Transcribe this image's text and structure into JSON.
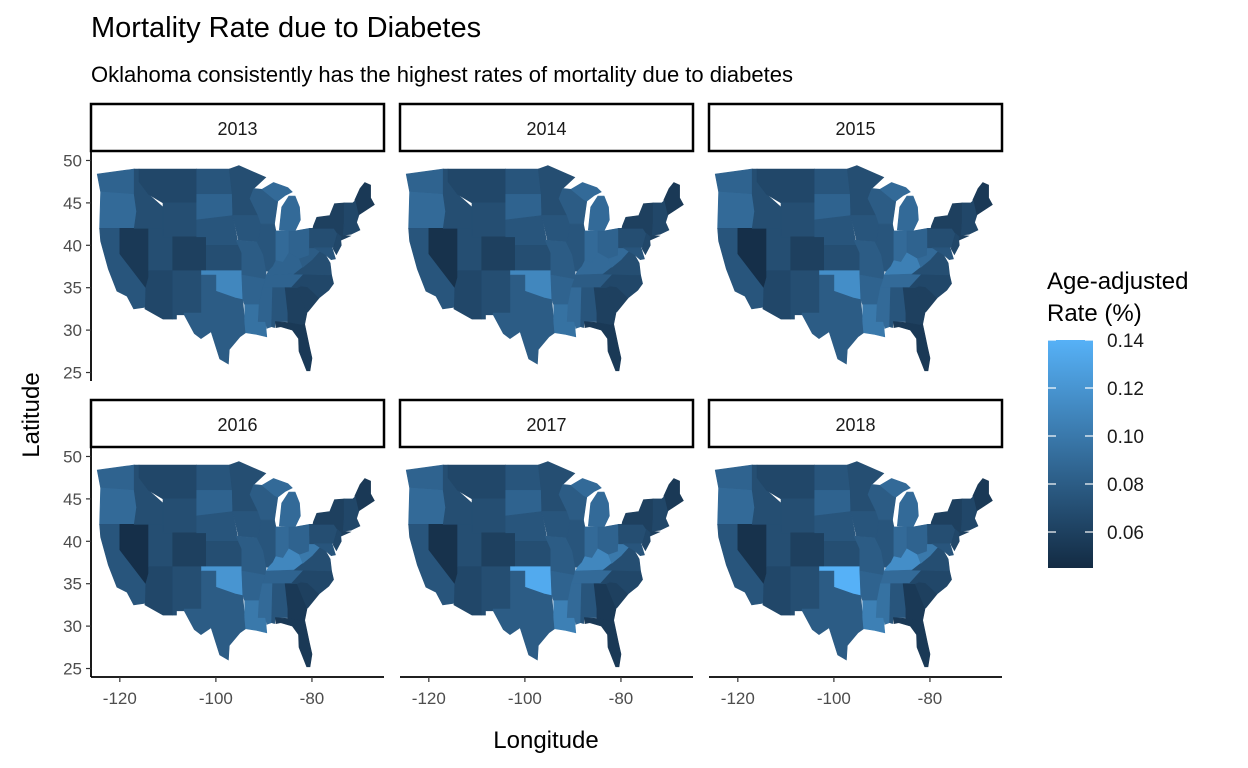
{
  "chart_data": {
    "type": "choropleth-map",
    "title": "Mortality Rate due to Diabetes",
    "subtitle": "Oklahoma consistently has the highest rates of mortality due to diabetes",
    "xlabel": "Longitude",
    "ylabel": "Latitude",
    "x_ticks": [
      -120,
      -100,
      -80
    ],
    "y_ticks": [
      25,
      30,
      35,
      40,
      45,
      50
    ],
    "xlim": [
      -126,
      -65
    ],
    "ylim": [
      24,
      51
    ],
    "legend": {
      "title_lines": [
        "Age-adjusted",
        "Rate (%)"
      ],
      "ticks": [
        0.06,
        0.08,
        0.1,
        0.12,
        0.14
      ],
      "tick_labels": [
        "0.06",
        "0.08",
        "0.10",
        "0.12",
        "0.14"
      ],
      "range": [
        0.045,
        0.14
      ],
      "low_color": "#132B43",
      "high_color": "#56B1F7",
      "position": "right"
    },
    "facets": [
      {
        "year": "2013",
        "values": {
          "OK": 0.11,
          "NV": 0.055,
          "TN": 0.085,
          "KY": 0.085,
          "GA": 0.06,
          "FL": 0.055,
          "WV": 0.08,
          "LA": 0.095,
          "MS": 0.085
        }
      },
      {
        "year": "2014",
        "values": {
          "OK": 0.11,
          "NV": 0.05,
          "TN": 0.08,
          "KY": 0.09,
          "GA": 0.06,
          "FL": 0.055,
          "WV": 0.09,
          "LA": 0.095,
          "MS": 0.09
        }
      },
      {
        "year": "2015",
        "values": {
          "OK": 0.115,
          "NV": 0.048,
          "TN": 0.09,
          "KY": 0.105,
          "GA": 0.06,
          "FL": 0.055,
          "WV": 0.09,
          "LA": 0.1,
          "MS": 0.09
        }
      },
      {
        "year": "2016",
        "values": {
          "OK": 0.12,
          "NV": 0.048,
          "TN": 0.085,
          "KY": 0.11,
          "GA": 0.055,
          "FL": 0.055,
          "WV": 0.1,
          "LA": 0.1,
          "MS": 0.09
        }
      },
      {
        "year": "2017",
        "values": {
          "OK": 0.135,
          "NV": 0.05,
          "TN": 0.09,
          "KY": 0.11,
          "GA": 0.055,
          "FL": 0.055,
          "WV": 0.1,
          "LA": 0.105,
          "MS": 0.09
        }
      },
      {
        "year": "2018",
        "values": {
          "OK": 0.14,
          "NV": 0.05,
          "TN": 0.09,
          "KY": 0.115,
          "GA": 0.055,
          "FL": 0.055,
          "WV": 0.1,
          "LA": 0.105,
          "MS": 0.095
        }
      }
    ]
  }
}
